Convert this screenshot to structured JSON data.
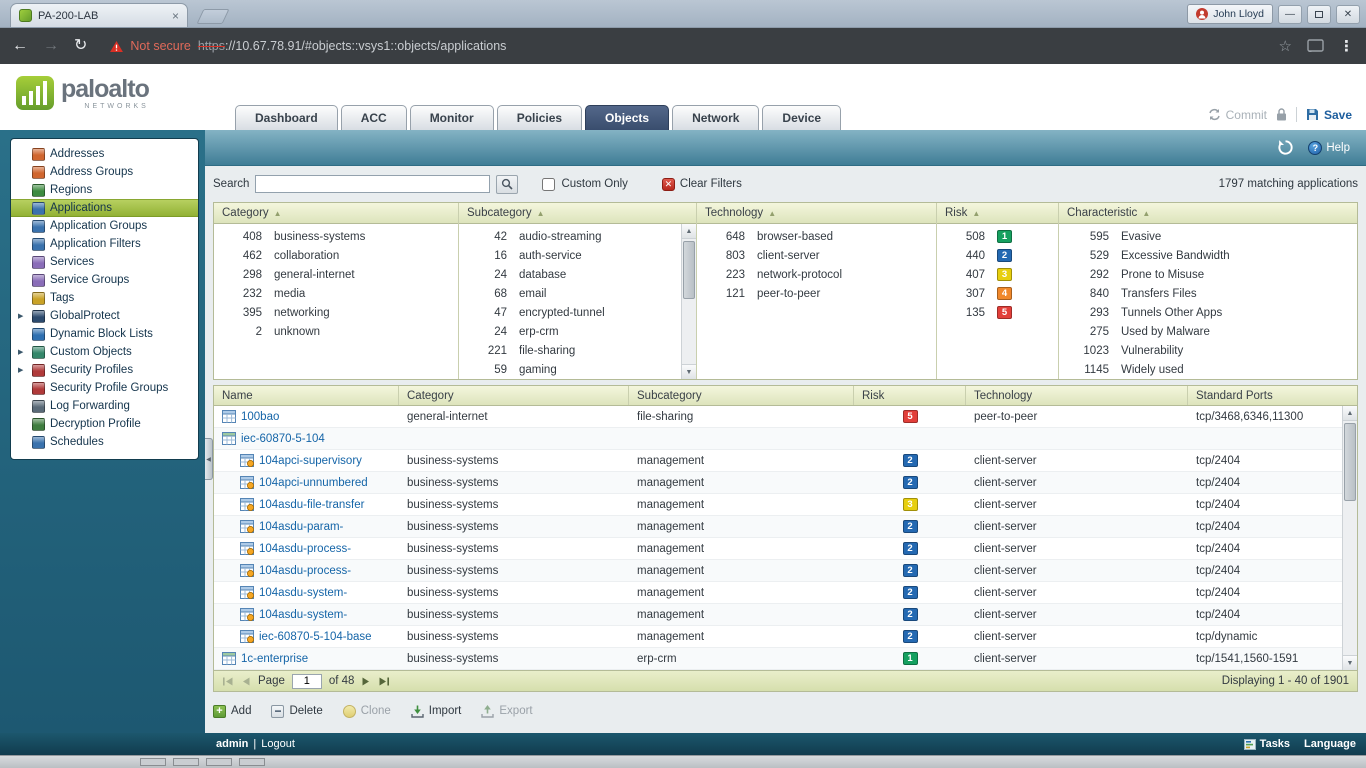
{
  "browser": {
    "tab_title": "PA-200-LAB",
    "user_name": "John Lloyd",
    "not_secure": "Not secure",
    "url_scheme": "https",
    "url_rest": "://10.67.78.91/#objects::vsys1::objects/applications"
  },
  "header": {
    "logo_text": "paloalto",
    "logo_sub": "NETWORKS",
    "tabs": [
      "Dashboard",
      "ACC",
      "Monitor",
      "Policies",
      "Objects",
      "Network",
      "Device"
    ],
    "active_tab": "Objects",
    "commit_label": "Commit",
    "save_label": "Save"
  },
  "main_header": {
    "help_label": "Help"
  },
  "sidebar": {
    "items": [
      {
        "label": "Addresses",
        "icon": "addresses-icon",
        "color": "#d0662f"
      },
      {
        "label": "Address Groups",
        "icon": "address-groups-icon",
        "color": "#d0662f"
      },
      {
        "label": "Regions",
        "icon": "regions-icon",
        "color": "#3d8b40"
      },
      {
        "label": "Applications",
        "icon": "applications-icon",
        "color": "#3a72ad",
        "selected": true
      },
      {
        "label": "Application Groups",
        "icon": "application-groups-icon",
        "color": "#3a72ad"
      },
      {
        "label": "Application Filters",
        "icon": "application-filters-icon",
        "color": "#3a72ad"
      },
      {
        "label": "Services",
        "icon": "services-icon",
        "color": "#8a6db8"
      },
      {
        "label": "Service Groups",
        "icon": "service-groups-icon",
        "color": "#8a6db8"
      },
      {
        "label": "Tags",
        "icon": "tags-icon",
        "color": "#c9a227"
      },
      {
        "label": "GlobalProtect",
        "icon": "globalprotect-icon",
        "color": "#2c4a6e",
        "expandable": true
      },
      {
        "label": "Dynamic Block Lists",
        "icon": "dynamic-block-lists-icon",
        "color": "#2e6fb0"
      },
      {
        "label": "Custom Objects",
        "icon": "custom-objects-icon",
        "color": "#35876a",
        "expandable": true
      },
      {
        "label": "Security Profiles",
        "icon": "security-profiles-icon",
        "color": "#b03a3a",
        "expandable": true
      },
      {
        "label": "Security Profile Groups",
        "icon": "security-profile-groups-icon",
        "color": "#b03a3a"
      },
      {
        "label": "Log Forwarding",
        "icon": "log-forwarding-icon",
        "color": "#5a6a78"
      },
      {
        "label": "Decryption Profile",
        "icon": "decryption-profile-icon",
        "color": "#3f7d3f"
      },
      {
        "label": "Schedules",
        "icon": "schedules-icon",
        "color": "#3a72ad"
      }
    ]
  },
  "toolbar": {
    "search_label": "Search",
    "search_value": "",
    "custom_only_label": "Custom Only",
    "clear_filters_label": "Clear Filters",
    "matching_text": "1797 matching applications"
  },
  "risk_colors": {
    "1": "#15a05f",
    "2": "#2469b2",
    "3": "#e7cf0e",
    "4": "#f0882b",
    "5": "#e23f3a"
  },
  "filters": {
    "columns": [
      {
        "title": "Category",
        "items": [
          {
            "count": "408",
            "label": "business-systems"
          },
          {
            "count": "462",
            "label": "collaboration"
          },
          {
            "count": "298",
            "label": "general-internet"
          },
          {
            "count": "232",
            "label": "media"
          },
          {
            "count": "395",
            "label": "networking"
          },
          {
            "count": "2",
            "label": "unknown"
          }
        ]
      },
      {
        "title": "Subcategory",
        "scrollbar": true,
        "items": [
          {
            "count": "42",
            "label": "audio-streaming"
          },
          {
            "count": "16",
            "label": "auth-service"
          },
          {
            "count": "24",
            "label": "database"
          },
          {
            "count": "68",
            "label": "email"
          },
          {
            "count": "47",
            "label": "encrypted-tunnel"
          },
          {
            "count": "24",
            "label": "erp-crm"
          },
          {
            "count": "221",
            "label": "file-sharing"
          },
          {
            "count": "59",
            "label": "gaming"
          }
        ]
      },
      {
        "title": "Technology",
        "items": [
          {
            "count": "648",
            "label": "browser-based"
          },
          {
            "count": "803",
            "label": "client-server"
          },
          {
            "count": "223",
            "label": "network-protocol"
          },
          {
            "count": "121",
            "label": "peer-to-peer"
          }
        ]
      },
      {
        "title": "Risk",
        "items": [
          {
            "count": "508",
            "risk": "1"
          },
          {
            "count": "440",
            "risk": "2"
          },
          {
            "count": "407",
            "risk": "3"
          },
          {
            "count": "307",
            "risk": "4"
          },
          {
            "count": "135",
            "risk": "5"
          }
        ]
      },
      {
        "title": "Characteristic",
        "items": [
          {
            "count": "595",
            "label": "Evasive"
          },
          {
            "count": "529",
            "label": "Excessive Bandwidth"
          },
          {
            "count": "292",
            "label": "Prone to Misuse"
          },
          {
            "count": "840",
            "label": "Transfers Files"
          },
          {
            "count": "293",
            "label": "Tunnels Other Apps"
          },
          {
            "count": "275",
            "label": "Used by Malware"
          },
          {
            "count": "1023",
            "label": "Vulnerability"
          },
          {
            "count": "1145",
            "label": "Widely used"
          }
        ]
      }
    ]
  },
  "table": {
    "columns": [
      "Name",
      "Category",
      "Subcategory",
      "Risk",
      "Technology",
      "Standard Ports"
    ],
    "rows": [
      {
        "name": "100bao",
        "icon": "app",
        "indent": 0,
        "category": "general-internet",
        "subcategory": "file-sharing",
        "risk": "5",
        "technology": "peer-to-peer",
        "ports": "tcp/3468,6346,11300"
      },
      {
        "name": "iec-60870-5-104",
        "icon": "container",
        "indent": 0,
        "category": "",
        "subcategory": "",
        "risk": "",
        "technology": "",
        "ports": ""
      },
      {
        "name": "104apci-supervisory",
        "icon": "func",
        "indent": 1,
        "category": "business-systems",
        "subcategory": "management",
        "risk": "2",
        "technology": "client-server",
        "ports": "tcp/2404"
      },
      {
        "name": "104apci-unnumbered",
        "icon": "func",
        "indent": 1,
        "category": "business-systems",
        "subcategory": "management",
        "risk": "2",
        "technology": "client-server",
        "ports": "tcp/2404"
      },
      {
        "name": "104asdu-file-transfer",
        "icon": "func",
        "indent": 1,
        "category": "business-systems",
        "subcategory": "management",
        "risk": "3",
        "technology": "client-server",
        "ports": "tcp/2404"
      },
      {
        "name": "104asdu-param-",
        "icon": "func",
        "indent": 1,
        "category": "business-systems",
        "subcategory": "management",
        "risk": "2",
        "technology": "client-server",
        "ports": "tcp/2404"
      },
      {
        "name": "104asdu-process-",
        "icon": "func",
        "indent": 1,
        "category": "business-systems",
        "subcategory": "management",
        "risk": "2",
        "technology": "client-server",
        "ports": "tcp/2404"
      },
      {
        "name": "104asdu-process-",
        "icon": "func",
        "indent": 1,
        "category": "business-systems",
        "subcategory": "management",
        "risk": "2",
        "technology": "client-server",
        "ports": "tcp/2404"
      },
      {
        "name": "104asdu-system-",
        "icon": "func",
        "indent": 1,
        "category": "business-systems",
        "subcategory": "management",
        "risk": "2",
        "technology": "client-server",
        "ports": "tcp/2404"
      },
      {
        "name": "104asdu-system-",
        "icon": "func",
        "indent": 1,
        "category": "business-systems",
        "subcategory": "management",
        "risk": "2",
        "technology": "client-server",
        "ports": "tcp/2404"
      },
      {
        "name": "iec-60870-5-104-base",
        "icon": "func",
        "indent": 1,
        "category": "business-systems",
        "subcategory": "management",
        "risk": "2",
        "technology": "client-server",
        "ports": "tcp/dynamic"
      },
      {
        "name": "1c-enterprise",
        "icon": "container",
        "indent": 0,
        "category": "business-systems",
        "subcategory": "erp-crm",
        "risk": "1",
        "technology": "client-server",
        "ports": "tcp/1541,1560-1591"
      }
    ]
  },
  "pagination": {
    "page_label": "Page",
    "page_value": "1",
    "of_label": "of 48",
    "displaying_text": "Displaying 1 - 40 of 1901"
  },
  "actions": {
    "add": "Add",
    "delete": "Delete",
    "clone": "Clone",
    "import": "Import",
    "export": "Export"
  },
  "footer": {
    "admin": "admin",
    "logout": "Logout",
    "tasks": "Tasks",
    "language": "Language"
  }
}
